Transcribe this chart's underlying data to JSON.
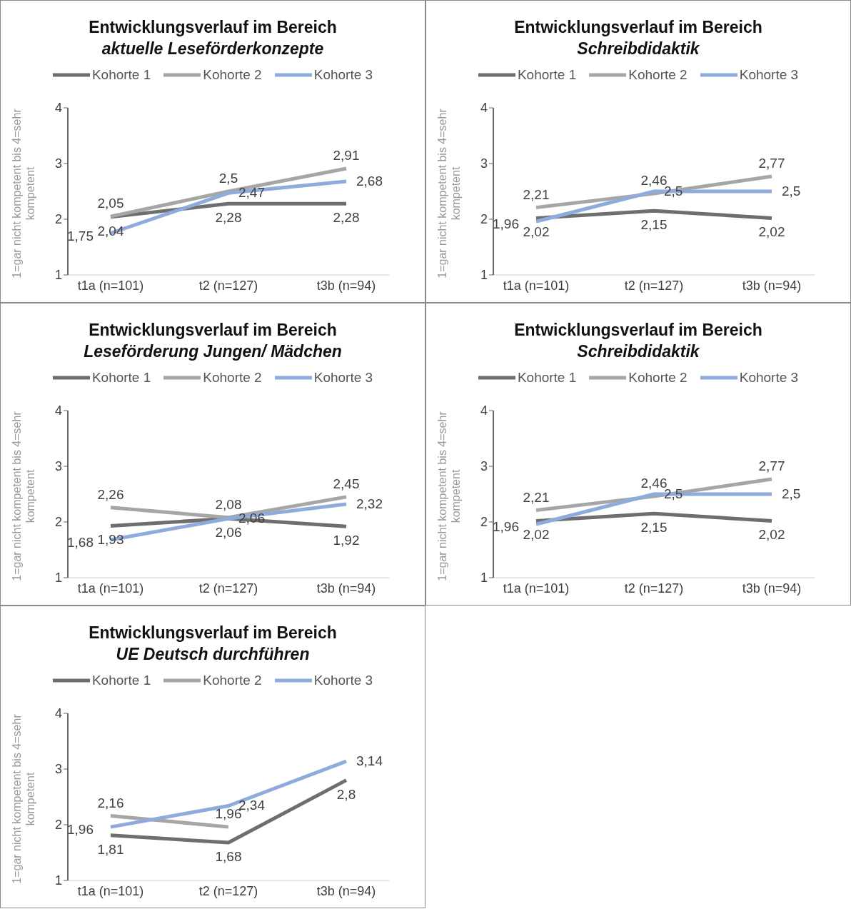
{
  "chart_data": [
    {
      "type": "line",
      "title": "Entwicklungsverlauf im Bereich",
      "subtitle": "aktuelle Leseförderkonzepte",
      "ylabel": "1=gar nicht kompetent bis 4=sehr kompetent",
      "categories": [
        "t1a (n=101)",
        "t2 (n=127)",
        "t3b (n=94)"
      ],
      "ylim": [
        1,
        4
      ],
      "yticks": [
        1,
        2,
        3,
        4
      ],
      "legend": "top",
      "grid": false,
      "marker": "none",
      "series": [
        {
          "name": "Kohorte 1",
          "color": "#6e6e6e",
          "values": [
            2.04,
            2.28,
            2.28
          ],
          "value_labels": [
            "2,04",
            "2,28",
            "2,28"
          ]
        },
        {
          "name": "Kohorte 2",
          "color": "#a6a6a6",
          "values": [
            2.05,
            2.5,
            2.91
          ],
          "value_labels": [
            "2,05",
            "2,5",
            "2,91"
          ]
        },
        {
          "name": "Kohorte 3",
          "color": "#8faadc",
          "values": [
            1.75,
            2.47,
            2.68
          ],
          "value_labels": [
            "1,75",
            "2,47",
            "2,68"
          ]
        }
      ]
    },
    {
      "type": "line",
      "title": "Entwicklungsverlauf im Bereich",
      "subtitle": "Schreibdidaktik",
      "ylabel": "1=gar nicht kompetent bis 4=sehr kompetent",
      "categories": [
        "t1a (n=101)",
        "t2 (n=127)",
        "t3b (n=94)"
      ],
      "ylim": [
        1,
        4
      ],
      "yticks": [
        1,
        2,
        3,
        4
      ],
      "legend": "top",
      "grid": false,
      "marker": "none",
      "series": [
        {
          "name": "Kohorte 1",
          "color": "#6e6e6e",
          "values": [
            2.02,
            2.15,
            2.02
          ],
          "value_labels": [
            "2,02",
            "2,15",
            "2,02"
          ]
        },
        {
          "name": "Kohorte 2",
          "color": "#a6a6a6",
          "values": [
            2.21,
            2.46,
            2.77
          ],
          "value_labels": [
            "2,21",
            "2,46",
            "2,77"
          ]
        },
        {
          "name": "Kohorte 3",
          "color": "#8faadc",
          "values": [
            1.96,
            2.5,
            2.5
          ],
          "value_labels": [
            "1,96",
            "2,5",
            "2,5"
          ]
        }
      ]
    },
    {
      "type": "line",
      "title": "Entwicklungsverlauf im Bereich",
      "subtitle": "Leseförderung Jungen/ Mädchen",
      "ylabel": "1=gar nicht kompetent bis 4=sehr kompetent",
      "categories": [
        "t1a (n=101)",
        "t2 (n=127)",
        "t3b (n=94)"
      ],
      "ylim": [
        1,
        4
      ],
      "yticks": [
        1,
        2,
        3,
        4
      ],
      "legend": "top",
      "grid": false,
      "marker": "none",
      "series": [
        {
          "name": "Kohorte 1",
          "color": "#6e6e6e",
          "values": [
            1.93,
            2.06,
            1.92
          ],
          "value_labels": [
            "1,93",
            "2,06",
            "1,92"
          ]
        },
        {
          "name": "Kohorte 2",
          "color": "#a6a6a6",
          "values": [
            2.26,
            2.08,
            2.45
          ],
          "value_labels": [
            "2,26",
            "2,08",
            "2,45"
          ]
        },
        {
          "name": "Kohorte 3",
          "color": "#8faadc",
          "values": [
            1.68,
            2.06,
            2.32
          ],
          "value_labels": [
            "1,68",
            "2,06",
            "2,32"
          ]
        }
      ]
    },
    {
      "type": "line",
      "title": "Entwicklungsverlauf im Bereich",
      "subtitle": "Schreibdidaktik",
      "ylabel": "1=gar nicht kompetent bis 4=sehr kompetent",
      "categories": [
        "t1a (n=101)",
        "t2 (n=127)",
        "t3b (n=94)"
      ],
      "ylim": [
        1,
        4
      ],
      "yticks": [
        1,
        2,
        3,
        4
      ],
      "legend": "top",
      "grid": false,
      "marker": "none",
      "series": [
        {
          "name": "Kohorte 1",
          "color": "#6e6e6e",
          "values": [
            2.02,
            2.15,
            2.02
          ],
          "value_labels": [
            "2,02",
            "2,15",
            "2,02"
          ]
        },
        {
          "name": "Kohorte 2",
          "color": "#a6a6a6",
          "values": [
            2.21,
            2.46,
            2.77
          ],
          "value_labels": [
            "2,21",
            "2,46",
            "2,77"
          ]
        },
        {
          "name": "Kohorte 3",
          "color": "#8faadc",
          "values": [
            1.96,
            2.5,
            2.5
          ],
          "value_labels": [
            "1,96",
            "2,5",
            "2,5"
          ]
        }
      ]
    },
    {
      "type": "line",
      "title": "Entwicklungsverlauf im Bereich",
      "subtitle": "UE Deutsch durchführen",
      "ylabel": "1=gar nicht kompetent bis 4=sehr kompetent",
      "categories": [
        "t1a (n=101)",
        "t2 (n=127)",
        "t3b (n=94)"
      ],
      "ylim": [
        1,
        4
      ],
      "yticks": [
        1,
        2,
        3,
        4
      ],
      "legend": "top",
      "grid": false,
      "marker": "none",
      "series": [
        {
          "name": "Kohorte 1",
          "color": "#6e6e6e",
          "values": [
            1.81,
            1.68,
            2.8
          ],
          "value_labels": [
            "1,81",
            "1,68",
            "2,8"
          ]
        },
        {
          "name": "Kohorte 2",
          "color": "#a6a6a6",
          "values": [
            2.16,
            1.96,
            null
          ],
          "value_labels": [
            "2,16",
            "1,96",
            null
          ]
        },
        {
          "name": "Kohorte 3",
          "color": "#8faadc",
          "values": [
            1.96,
            2.34,
            3.14
          ],
          "value_labels": [
            "1,96",
            "2,34",
            "3,14"
          ]
        }
      ]
    }
  ]
}
